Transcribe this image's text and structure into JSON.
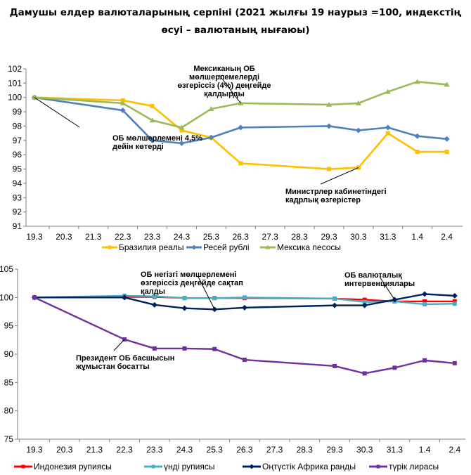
{
  "title": "Дамушы елдер валюталарының серпіні (2021 жылғы 19 наурыз =100, индекстің өсуі – валютаның нығаюы)",
  "chart_data": [
    {
      "type": "line",
      "categories": [
        "19.3",
        "20.3",
        "21.3",
        "22.3",
        "23.3",
        "24.3",
        "25.3",
        "26.3",
        "27.3",
        "28.3",
        "29.3",
        "30.3",
        "31.3",
        "1.4",
        "2.4"
      ],
      "ylim": [
        91,
        102
      ],
      "yticks": [
        91,
        92,
        93,
        94,
        95,
        96,
        97,
        98,
        99,
        100,
        101,
        102
      ],
      "grid": false,
      "legend_position": "bottom",
      "series": [
        {
          "name": "Бразилия реалы",
          "color": "#FFC000",
          "marker": "square",
          "points": [
            [
              "19.3",
              100
            ],
            [
              "22.3",
              99.8
            ],
            [
              "23.3",
              99.4
            ],
            [
              "24.3",
              97.7
            ],
            [
              "25.3",
              97.2
            ],
            [
              "26.3",
              95.4
            ],
            [
              "29.3",
              95.0
            ],
            [
              "30.3",
              95.1
            ],
            [
              "31.3",
              97.5
            ],
            [
              "1.4",
              96.2
            ],
            [
              "2.4",
              96.2
            ]
          ]
        },
        {
          "name": "Ресей рублі",
          "color": "#4F81BD",
          "marker": "diamond",
          "points": [
            [
              "19.3",
              100
            ],
            [
              "22.3",
              99.1
            ],
            [
              "23.3",
              97.0
            ],
            [
              "24.3",
              96.8
            ],
            [
              "25.3",
              97.2
            ],
            [
              "26.3",
              97.9
            ],
            [
              "29.3",
              98.0
            ],
            [
              "30.3",
              97.7
            ],
            [
              "31.3",
              97.9
            ],
            [
              "1.4",
              97.3
            ],
            [
              "2.4",
              97.1
            ]
          ]
        },
        {
          "name": "Мексика песосы",
          "color": "#9BBB59",
          "marker": "triangle",
          "points": [
            [
              "19.3",
              100
            ],
            [
              "22.3",
              99.6
            ],
            [
              "23.3",
              98.4
            ],
            [
              "24.3",
              97.9
            ],
            [
              "25.3",
              99.2
            ],
            [
              "26.3",
              99.6
            ],
            [
              "29.3",
              99.5
            ],
            [
              "30.3",
              99.6
            ],
            [
              "31.3",
              100.4
            ],
            [
              "1.4",
              101.1
            ],
            [
              "2.4",
              100.9
            ]
          ]
        }
      ],
      "annotations": [
        {
          "lines": [
            "Мексиканың ОБ",
            "мөлшерлемелерді",
            "өзгеріссіз (4%) деңгейде",
            "қалдырды"
          ],
          "points_to": [
            "26.3",
            99.6
          ]
        },
        {
          "lines": [
            "ОБ мөлшерлемені 4,5%",
            "дейін көтерді"
          ],
          "points_to": [
            "19.3",
            100
          ]
        },
        {
          "lines": [
            "Министрлер кабинетіндегі",
            "кадрлық өзгерістер"
          ],
          "points_to": [
            "30.3",
            95.1
          ]
        }
      ]
    },
    {
      "type": "line",
      "categories": [
        "19.3",
        "20.3",
        "21.3",
        "22.3",
        "23.3",
        "24.3",
        "25.3",
        "26.3",
        "27.3",
        "28.3",
        "29.3",
        "30.3",
        "31.3",
        "1.4",
        "2.4"
      ],
      "ylim": [
        75,
        105
      ],
      "yticks": [
        75,
        80,
        85,
        90,
        95,
        100,
        105
      ],
      "grid": false,
      "legend_position": "bottom",
      "series": [
        {
          "name": "Индонезия рупиясы",
          "color": "#FF0000",
          "marker": "square",
          "points": [
            [
              "19.3",
              100
            ],
            [
              "22.3",
              100.1
            ],
            [
              "23.3",
              100.1
            ],
            [
              "24.3",
              99.9
            ],
            [
              "25.3",
              99.9
            ],
            [
              "26.3",
              99.9
            ],
            [
              "29.3",
              99.8
            ],
            [
              "30.3",
              99.6
            ],
            [
              "31.3",
              99.3
            ],
            [
              "1.4",
              99.3
            ],
            [
              "2.4",
              99.3
            ]
          ]
        },
        {
          "name": "үнді рупиясы",
          "color": "#4BACC6",
          "marker": "square",
          "points": [
            [
              "19.3",
              100
            ],
            [
              "22.3",
              100.3
            ],
            [
              "23.3",
              100.2
            ],
            [
              "24.3",
              99.9
            ],
            [
              "25.3",
              99.9
            ],
            [
              "26.3",
              100.0
            ],
            [
              "29.3",
              99.8
            ],
            [
              "30.3",
              99.2
            ],
            [
              "31.3",
              99.3
            ],
            [
              "1.4",
              98.8
            ],
            [
              "2.4",
              98.9
            ]
          ]
        },
        {
          "name": "Оңтүстік Африка рандьі",
          "color": "#002060",
          "marker": "diamond",
          "points": [
            [
              "19.3",
              100
            ],
            [
              "22.3",
              100
            ],
            [
              "23.3",
              98.7
            ],
            [
              "24.3",
              98.1
            ],
            [
              "25.3",
              97.9
            ],
            [
              "26.3",
              98.2
            ],
            [
              "29.3",
              98.6
            ],
            [
              "30.3",
              98.6
            ],
            [
              "31.3",
              99.6
            ],
            [
              "1.4",
              100.6
            ],
            [
              "2.4",
              100.3
            ]
          ]
        },
        {
          "name": "түрік лирасы",
          "color": "#7030A0",
          "marker": "square",
          "points": [
            [
              "19.3",
              100
            ],
            [
              "22.3",
              92.6
            ],
            [
              "23.3",
              91.0
            ],
            [
              "24.3",
              91.0
            ],
            [
              "25.3",
              90.9
            ],
            [
              "26.3",
              89.0
            ],
            [
              "29.3",
              87.9
            ],
            [
              "30.3",
              86.6
            ],
            [
              "31.3",
              87.6
            ],
            [
              "1.4",
              88.9
            ],
            [
              "2.4",
              88.4
            ]
          ]
        }
      ],
      "annotations": [
        {
          "lines": [
            "ОБ негізгі мөлшерлемені",
            "өзгеріссіз деңгейде сақтап",
            "қалды"
          ],
          "points_to": [
            "25.3",
            97.9
          ]
        },
        {
          "lines": [
            "ОБ валюталық",
            "интервенциялары"
          ],
          "points_to": [
            "31.3",
            99.6
          ]
        },
        {
          "lines": [
            "Президент ОБ басшысын",
            "жұмыстан босатты"
          ],
          "points_to": [
            "22.3",
            92.6
          ]
        }
      ]
    }
  ]
}
